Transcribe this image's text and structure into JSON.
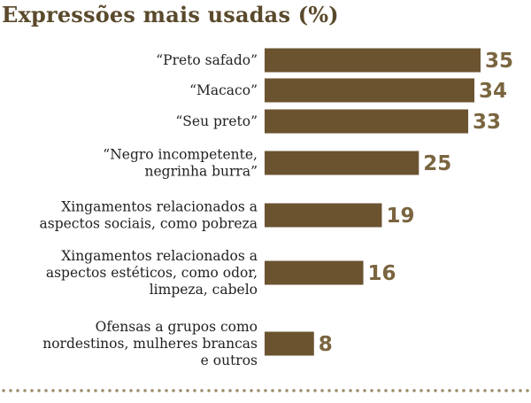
{
  "colors": {
    "bar": "#6b5330",
    "value_text": "#7a6540",
    "title": "#5a4a2c",
    "divider": "#9c8c6a"
  },
  "chart_data": {
    "type": "bar",
    "orientation": "horizontal",
    "title": "Expressões mais usadas (%)",
    "xlabel": "",
    "ylabel": "",
    "xlim": [
      0,
      35
    ],
    "grid": false,
    "legend": "none",
    "categories": [
      "“Preto safado”",
      "“Macaco”",
      "“Seu preto”",
      "“Negro incompetente, negrinha burra”",
      "Xingamentos relacionados a aspectos sociais, como pobreza",
      "Xingamentos relacionados a aspectos estéticos, como odor, limpeza, cabelo",
      "Ofensas a grupos como nordestinos, mulheres brancas e outros"
    ],
    "category_lines": [
      [
        "“Preto safado”"
      ],
      [
        "“Macaco”"
      ],
      [
        "“Seu preto”"
      ],
      [
        "“Negro incompetente,",
        "negrinha burra”"
      ],
      [
        "Xingamentos relacionados a",
        "aspectos sociais, como pobreza"
      ],
      [
        "Xingamentos relacionados a",
        "aspectos estéticos, como odor,",
        "limpeza, cabelo"
      ],
      [
        "Ofensas a grupos como",
        "nordestinos, mulheres brancas",
        "e outros"
      ]
    ],
    "values": [
      35,
      34,
      33,
      25,
      19,
      16,
      8
    ]
  }
}
